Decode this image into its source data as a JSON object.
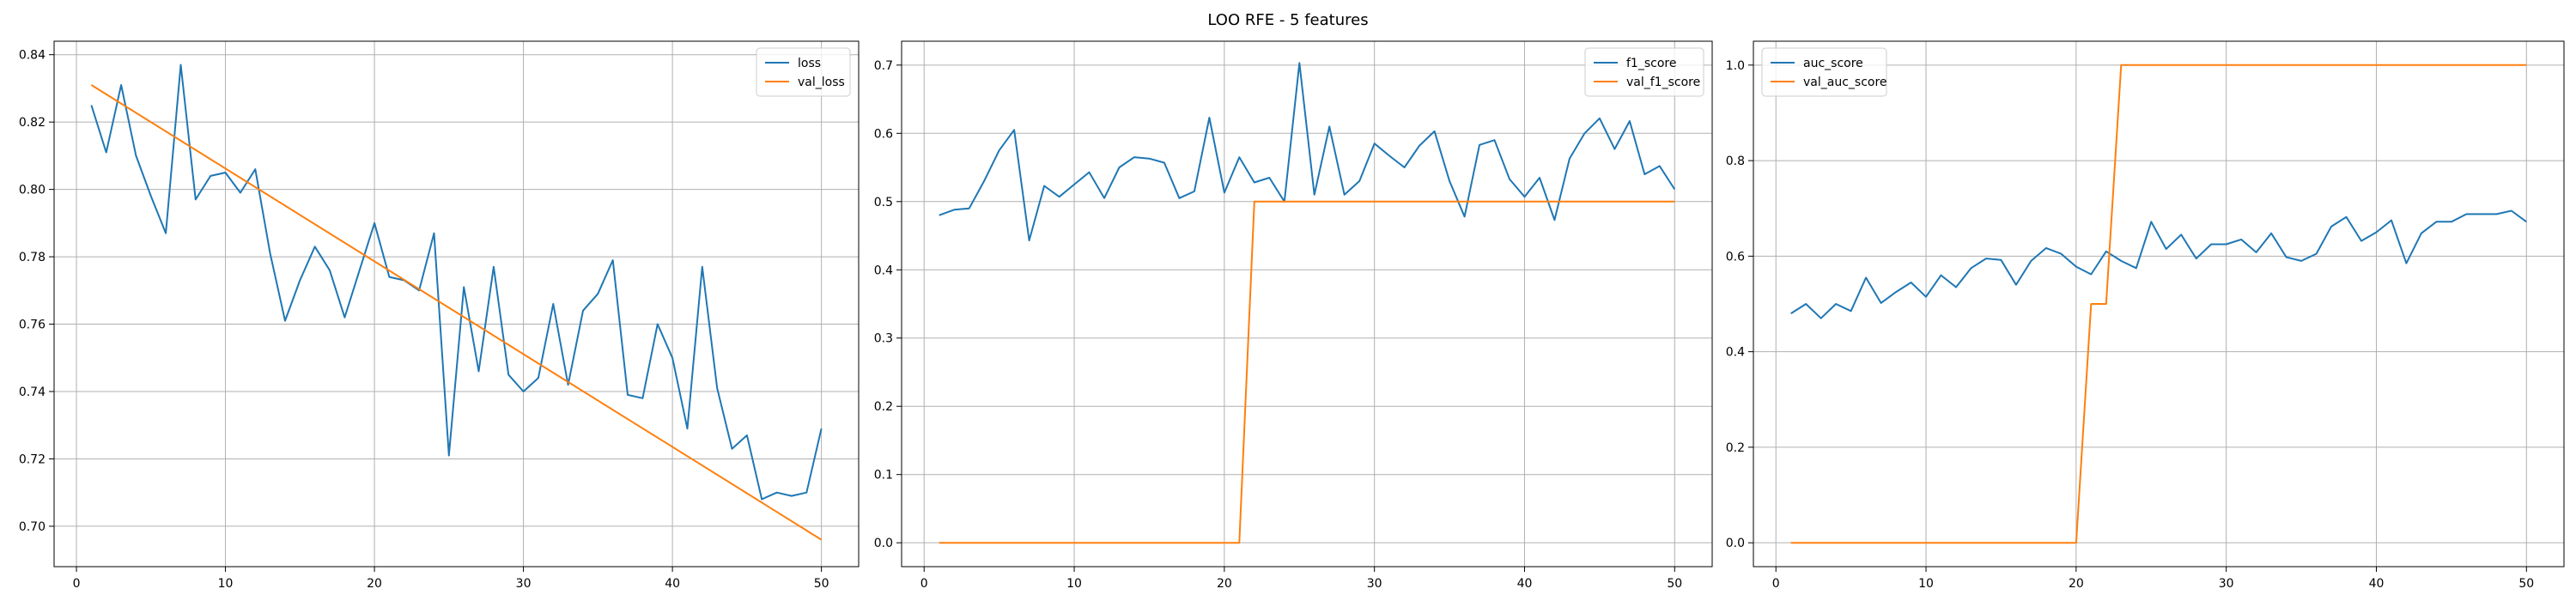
{
  "title": "LOO RFE - 5 features",
  "colors": {
    "series_blue": "#1f77b4",
    "series_orange": "#ff7f0e",
    "grid": "#b0b0b0",
    "frame": "#000000"
  },
  "chart_data": [
    {
      "type": "line",
      "grid": true,
      "legend_position": "top-right",
      "xlim": [
        -1.5,
        52.5
      ],
      "ylim": [
        0.688,
        0.844
      ],
      "xticks": [
        0,
        10,
        20,
        30,
        40,
        50
      ],
      "yticks": [
        0.7,
        0.72,
        0.74,
        0.76,
        0.78,
        0.8,
        0.82,
        0.84
      ],
      "ytick_labels": [
        "0.70",
        "0.72",
        "0.74",
        "0.76",
        "0.78",
        "0.80",
        "0.82",
        "0.84"
      ],
      "series": [
        {
          "name": "loss",
          "color": "#1f77b4",
          "x": [
            1,
            2,
            3,
            4,
            5,
            6,
            7,
            8,
            9,
            10,
            11,
            12,
            13,
            14,
            15,
            16,
            17,
            18,
            19,
            20,
            21,
            22,
            23,
            24,
            25,
            26,
            27,
            28,
            29,
            30,
            31,
            32,
            33,
            34,
            35,
            36,
            37,
            38,
            39,
            40,
            41,
            42,
            43,
            44,
            45,
            46,
            47,
            48,
            49,
            50
          ],
          "y": [
            0.825,
            0.811,
            0.831,
            0.81,
            0.798,
            0.787,
            0.837,
            0.797,
            0.804,
            0.805,
            0.799,
            0.806,
            0.781,
            0.761,
            0.773,
            0.783,
            0.776,
            0.762,
            0.776,
            0.79,
            0.774,
            0.773,
            0.77,
            0.787,
            0.721,
            0.771,
            0.746,
            0.777,
            0.745,
            0.74,
            0.744,
            0.766,
            0.742,
            0.764,
            0.769,
            0.779,
            0.739,
            0.738,
            0.76,
            0.75,
            0.729,
            0.777,
            0.741,
            0.723,
            0.727,
            0.708,
            0.71,
            0.709,
            0.71,
            0.729
          ]
        },
        {
          "name": "val_loss",
          "color": "#ff7f0e",
          "x": [
            1,
            50
          ],
          "y": [
            0.831,
            0.696
          ]
        }
      ]
    },
    {
      "type": "line",
      "grid": true,
      "legend_position": "top-right",
      "xlim": [
        -1.5,
        52.5
      ],
      "ylim": [
        -0.035,
        0.735
      ],
      "xticks": [
        0,
        10,
        20,
        30,
        40,
        50
      ],
      "yticks": [
        0.0,
        0.1,
        0.2,
        0.3,
        0.4,
        0.5,
        0.6,
        0.7
      ],
      "ytick_labels": [
        "0.0",
        "0.1",
        "0.2",
        "0.3",
        "0.4",
        "0.5",
        "0.6",
        "0.7"
      ],
      "series": [
        {
          "name": "f1_score",
          "color": "#1f77b4",
          "x": [
            1,
            2,
            3,
            4,
            5,
            6,
            7,
            8,
            9,
            10,
            11,
            12,
            13,
            14,
            15,
            16,
            17,
            18,
            19,
            20,
            21,
            22,
            23,
            24,
            25,
            26,
            27,
            28,
            29,
            30,
            31,
            32,
            33,
            34,
            35,
            36,
            37,
            38,
            39,
            40,
            41,
            42,
            43,
            44,
            45,
            46,
            47,
            48,
            49,
            50
          ],
          "y": [
            0.48,
            0.488,
            0.49,
            0.53,
            0.575,
            0.605,
            0.443,
            0.523,
            0.507,
            0.525,
            0.543,
            0.505,
            0.55,
            0.565,
            0.563,
            0.557,
            0.505,
            0.515,
            0.623,
            0.513,
            0.565,
            0.528,
            0.535,
            0.5,
            0.703,
            0.51,
            0.61,
            0.51,
            0.53,
            0.585,
            0.567,
            0.55,
            0.582,
            0.603,
            0.53,
            0.478,
            0.583,
            0.59,
            0.533,
            0.507,
            0.535,
            0.473,
            0.563,
            0.6,
            0.622,
            0.577,
            0.618,
            0.54,
            0.552,
            0.518
          ]
        },
        {
          "name": "val_f1_score",
          "color": "#ff7f0e",
          "x": [
            1,
            21,
            22,
            50
          ],
          "y": [
            0.0,
            0.0,
            0.5,
            0.5
          ]
        }
      ]
    },
    {
      "type": "line",
      "grid": true,
      "legend_position": "top-left",
      "xlim": [
        -1.5,
        52.5
      ],
      "ylim": [
        -0.05,
        1.05
      ],
      "xticks": [
        0,
        10,
        20,
        30,
        40,
        50
      ],
      "yticks": [
        0.0,
        0.2,
        0.4,
        0.6,
        0.8,
        1.0
      ],
      "ytick_labels": [
        "0.0",
        "0.2",
        "0.4",
        "0.6",
        "0.8",
        "1.0"
      ],
      "series": [
        {
          "name": "auc_score",
          "color": "#1f77b4",
          "x": [
            1,
            2,
            3,
            4,
            5,
            6,
            7,
            8,
            9,
            10,
            11,
            12,
            13,
            14,
            15,
            16,
            17,
            18,
            19,
            20,
            21,
            22,
            23,
            24,
            25,
            26,
            27,
            28,
            29,
            30,
            31,
            32,
            33,
            34,
            35,
            36,
            37,
            38,
            39,
            40,
            41,
            42,
            43,
            44,
            45,
            46,
            47,
            48,
            49,
            50
          ],
          "y": [
            0.48,
            0.5,
            0.47,
            0.5,
            0.485,
            0.555,
            0.502,
            0.525,
            0.545,
            0.515,
            0.56,
            0.535,
            0.575,
            0.595,
            0.592,
            0.54,
            0.59,
            0.617,
            0.605,
            0.578,
            0.562,
            0.61,
            0.59,
            0.575,
            0.672,
            0.615,
            0.645,
            0.595,
            0.625,
            0.625,
            0.635,
            0.608,
            0.648,
            0.598,
            0.59,
            0.605,
            0.662,
            0.682,
            0.632,
            0.65,
            0.675,
            0.585,
            0.648,
            0.672,
            0.672,
            0.688,
            0.688,
            0.688,
            0.695,
            0.672
          ]
        },
        {
          "name": "val_auc_score",
          "color": "#ff7f0e",
          "x": [
            1,
            20,
            21,
            22,
            23,
            50
          ],
          "y": [
            0.0,
            0.0,
            0.5,
            0.5,
            1.0,
            1.0
          ]
        }
      ]
    }
  ]
}
